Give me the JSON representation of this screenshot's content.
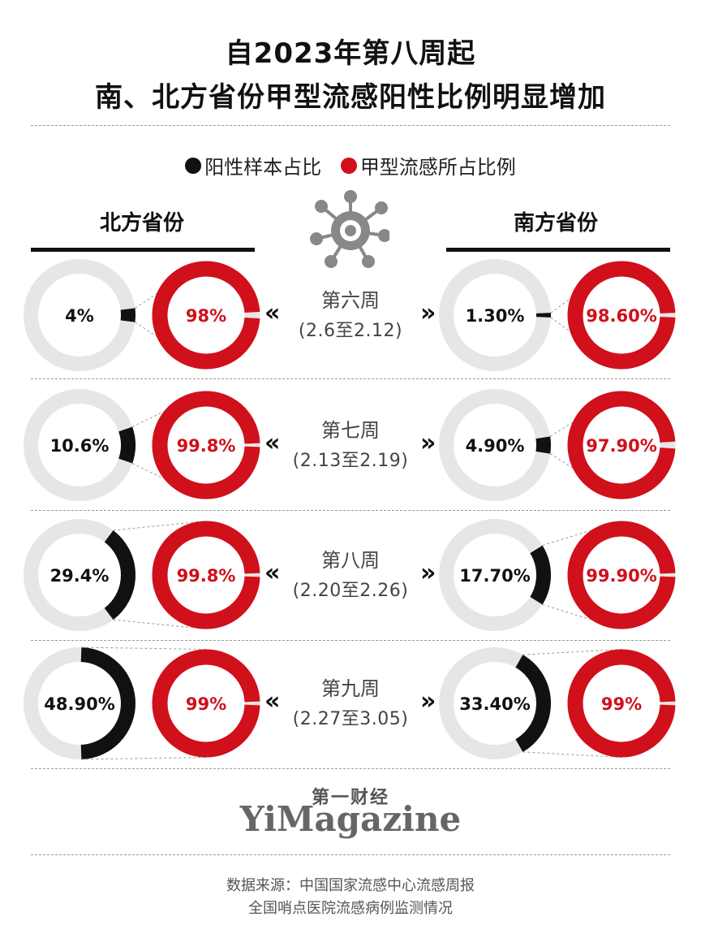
{
  "header": {
    "title_line1": "自2023年第八周起",
    "title_line2": "南、北方省份甲型流感阳性比例明显增加"
  },
  "legend": {
    "positive": {
      "label": "阳性样本占比",
      "color": "#111111"
    },
    "influenza_a": {
      "label": "甲型流感所占比例",
      "color": "#d0101b"
    }
  },
  "regions": {
    "north": "北方省份",
    "south": "南方省份"
  },
  "icons": {
    "virus": "virus-icon"
  },
  "chart_data": {
    "type": "donut",
    "ring_track_color": "#e6e6e6",
    "rows": [
      {
        "week": "第六周",
        "range": "(2.6至2.12)",
        "north": {
          "positive": 4,
          "positive_label": "4%",
          "influenza_a": 98,
          "influenza_a_label": "98%"
        },
        "south": {
          "positive": 1.3,
          "positive_label": "1.30%",
          "influenza_a": 98.6,
          "influenza_a_label": "98.60%"
        }
      },
      {
        "week": "第七周",
        "range": "(2.13至2.19)",
        "north": {
          "positive": 10.6,
          "positive_label": "10.6%",
          "influenza_a": 99.8,
          "influenza_a_label": "99.8%"
        },
        "south": {
          "positive": 4.9,
          "positive_label": "4.90%",
          "influenza_a": 97.9,
          "influenza_a_label": "97.90%"
        }
      },
      {
        "week": "第八周",
        "range": "(2.20至2.26)",
        "north": {
          "positive": 29.4,
          "positive_label": "29.4%",
          "influenza_a": 99.8,
          "influenza_a_label": "99.8%"
        },
        "south": {
          "positive": 17.7,
          "positive_label": "17.70%",
          "influenza_a": 99.9,
          "influenza_a_label": "99.90%"
        }
      },
      {
        "week": "第九周",
        "range": "(2.27至3.05)",
        "north": {
          "positive": 48.9,
          "positive_label": "48.90%",
          "influenza_a": 99,
          "influenza_a_label": "99%"
        },
        "south": {
          "positive": 33.4,
          "positive_label": "33.40%",
          "influenza_a": 99,
          "influenza_a_label": "99%"
        }
      }
    ]
  },
  "brand": {
    "cn": "第一财经",
    "en": "YiMagazine"
  },
  "source": {
    "line1": "数据来源：中国国家流感中心流感周报",
    "line2": "全国哨点医院流感病例监测情况"
  }
}
